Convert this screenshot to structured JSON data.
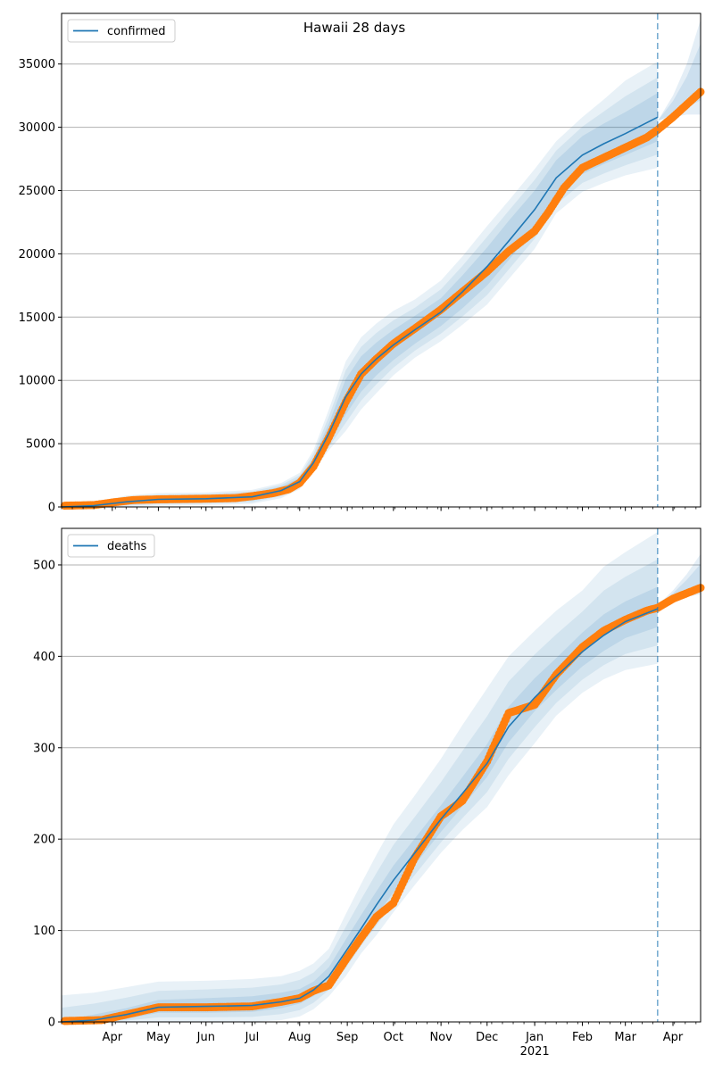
{
  "figure": {
    "title": "Hawaii 28 days",
    "forecast_start_date": "2021-03-22"
  },
  "colors": {
    "model_line": "#1f77b4",
    "observed": "#ff7f0e",
    "band": "#1f77b4",
    "grid": "#b0b0b0"
  },
  "x_axis": {
    "range": [
      "2020-02-28",
      "2021-04-19"
    ],
    "month_labels": [
      {
        "date": "2020-04-01",
        "label": "Apr"
      },
      {
        "date": "2020-05-01",
        "label": "May"
      },
      {
        "date": "2020-06-01",
        "label": "Jun"
      },
      {
        "date": "2020-07-01",
        "label": "Jul"
      },
      {
        "date": "2020-08-01",
        "label": "Aug"
      },
      {
        "date": "2020-09-01",
        "label": "Sep"
      },
      {
        "date": "2020-10-01",
        "label": "Oct"
      },
      {
        "date": "2020-11-01",
        "label": "Nov"
      },
      {
        "date": "2020-12-01",
        "label": "Dec"
      },
      {
        "date": "2021-01-01",
        "label": "Jan",
        "sublabel": "2021"
      },
      {
        "date": "2021-02-01",
        "label": "Feb"
      },
      {
        "date": "2021-03-01",
        "label": "Mar"
      },
      {
        "date": "2021-04-01",
        "label": "Apr"
      }
    ]
  },
  "chart_data": [
    {
      "type": "line",
      "legend": "confirmed",
      "legend_position": "upper left",
      "grid": "y",
      "ylim": [
        0,
        39000
      ],
      "yticks": [
        0,
        5000,
        10000,
        15000,
        20000,
        25000,
        30000,
        35000
      ],
      "model": {
        "x": [
          "2020-02-28",
          "2020-03-20",
          "2020-04-10",
          "2020-05-01",
          "2020-06-01",
          "2020-07-01",
          "2020-07-20",
          "2020-08-01",
          "2020-08-10",
          "2020-08-20",
          "2020-08-31",
          "2020-09-10",
          "2020-09-20",
          "2020-10-01",
          "2020-10-15",
          "2020-11-01",
          "2020-11-15",
          "2020-12-01",
          "2020-12-15",
          "2021-01-01",
          "2021-01-15",
          "2021-02-01",
          "2021-02-15",
          "2021-03-01",
          "2021-03-22"
        ],
        "y": [
          0,
          100,
          400,
          600,
          650,
          800,
          1300,
          2000,
          3500,
          5800,
          8700,
          10500,
          11700,
          12800,
          14000,
          15400,
          17000,
          19000,
          21000,
          23500,
          26000,
          27800,
          28700,
          29500,
          30800
        ]
      },
      "bands": {
        "lower_outer": [
          0,
          0,
          0,
          100,
          150,
          250,
          700,
          1400,
          2800,
          4500,
          6000,
          7700,
          9000,
          10400,
          11800,
          13100,
          14400,
          16000,
          18000,
          20400,
          23200,
          24900,
          25600,
          26200,
          26800
        ],
        "lower_inner": [
          0,
          50,
          200,
          350,
          400,
          500,
          1000,
          1700,
          3100,
          5000,
          7300,
          9100,
          10400,
          11600,
          12900,
          14300,
          15700,
          17500,
          19500,
          22000,
          24600,
          26300,
          27100,
          27800,
          28900
        ],
        "upper_inner": [
          0,
          150,
          600,
          850,
          900,
          1100,
          1600,
          2300,
          3900,
          6600,
          10100,
          11900,
          13000,
          14000,
          15100,
          16500,
          18300,
          20500,
          22600,
          25000,
          27400,
          29300,
          30300,
          31200,
          32700
        ],
        "upper_outer": [
          0,
          300,
          900,
          1100,
          1150,
          1350,
          1900,
          2700,
          4500,
          7700,
          11500,
          13400,
          14500,
          15500,
          16400,
          17900,
          19800,
          22200,
          24200,
          26700,
          28900,
          30800,
          32200,
          33700,
          35200
        ]
      },
      "observed": {
        "x": [
          "2020-03-01",
          "2020-03-20",
          "2020-04-01",
          "2020-04-15",
          "2020-05-01",
          "2020-06-01",
          "2020-06-20",
          "2020-07-01",
          "2020-07-15",
          "2020-07-25",
          "2020-08-01",
          "2020-08-10",
          "2020-08-20",
          "2020-08-31",
          "2020-09-10",
          "2020-09-20",
          "2020-10-01",
          "2020-10-15",
          "2020-11-01",
          "2020-11-15",
          "2020-12-01",
          "2020-12-15",
          "2021-01-01",
          "2021-01-10",
          "2021-01-20",
          "2021-02-01",
          "2021-02-15",
          "2021-03-01",
          "2021-03-15",
          "2021-03-22",
          "2021-04-01",
          "2021-04-19"
        ],
        "y": [
          100,
          150,
          350,
          550,
          600,
          650,
          700,
          850,
          1100,
          1400,
          1900,
          3200,
          5500,
          8300,
          10500,
          11700,
          12900,
          14100,
          15600,
          17000,
          18600,
          20200,
          21800,
          23300,
          25200,
          26800,
          27600,
          28400,
          29200,
          29800,
          30800,
          32800
        ]
      },
      "forecast": {
        "x": [
          "2021-03-22",
          "2021-04-01",
          "2021-04-10",
          "2021-04-19"
        ],
        "lower_outer": [
          30500,
          30800,
          31000,
          31000
        ],
        "upper_outer": [
          30500,
          32500,
          35000,
          38500
        ]
      }
    },
    {
      "type": "line",
      "legend": "deaths",
      "legend_position": "upper left",
      "grid": "y",
      "ylim": [
        0,
        540
      ],
      "yticks": [
        0,
        100,
        200,
        300,
        400,
        500
      ],
      "model": {
        "x": [
          "2020-02-28",
          "2020-03-20",
          "2020-04-10",
          "2020-05-01",
          "2020-06-01",
          "2020-07-01",
          "2020-07-20",
          "2020-08-01",
          "2020-08-10",
          "2020-08-20",
          "2020-08-31",
          "2020-09-10",
          "2020-09-20",
          "2020-10-01",
          "2020-10-15",
          "2020-11-01",
          "2020-11-15",
          "2020-12-01",
          "2020-12-15",
          "2021-01-01",
          "2021-01-15",
          "2021-02-01",
          "2021-02-15",
          "2021-03-01",
          "2021-03-22"
        ],
        "y": [
          0,
          2,
          8,
          16,
          17,
          18,
          22,
          26,
          35,
          50,
          77,
          102,
          128,
          155,
          185,
          222,
          250,
          283,
          323,
          355,
          378,
          405,
          423,
          438,
          452
        ]
      },
      "bands": {
        "lower_outer": [
          0,
          0,
          0,
          0,
          0,
          0,
          2,
          6,
          14,
          28,
          50,
          75,
          95,
          120,
          150,
          185,
          210,
          235,
          270,
          305,
          335,
          360,
          375,
          385,
          392
        ],
        "lower_inner": [
          0,
          0,
          3,
          10,
          10,
          11,
          15,
          20,
          28,
          42,
          68,
          92,
          116,
          142,
          172,
          208,
          236,
          268,
          306,
          340,
          363,
          389,
          406,
          420,
          432
        ],
        "upper_inner": [
          2,
          8,
          15,
          24,
          26,
          28,
          32,
          36,
          44,
          60,
          90,
          117,
          143,
          171,
          201,
          237,
          268,
          304,
          345,
          376,
          398,
          426,
          446,
          460,
          476
        ],
        "upper_outer": [
          29,
          32,
          38,
          44,
          45,
          47,
          50,
          56,
          64,
          80,
          118,
          151,
          183,
          216,
          248,
          288,
          325,
          365,
          400,
          428,
          450,
          472,
          498,
          514,
          536
        ]
      },
      "observed": {
        "x": [
          "2020-03-01",
          "2020-03-25",
          "2020-04-10",
          "2020-05-01",
          "2020-06-01",
          "2020-07-01",
          "2020-07-20",
          "2020-08-01",
          "2020-08-10",
          "2020-08-20",
          "2020-08-31",
          "2020-09-10",
          "2020-09-20",
          "2020-10-01",
          "2020-10-15",
          "2020-11-01",
          "2020-11-15",
          "2020-12-01",
          "2020-12-15",
          "2021-01-01",
          "2021-01-15",
          "2021-02-01",
          "2021-02-15",
          "2021-03-01",
          "2021-03-15",
          "2021-03-22",
          "2021-04-01",
          "2021-04-19"
        ],
        "y": [
          1,
          2,
          8,
          16,
          16,
          17,
          22,
          26,
          34,
          40,
          68,
          92,
          115,
          130,
          180,
          225,
          242,
          285,
          338,
          347,
          380,
          410,
          428,
          440,
          450,
          453,
          463,
          475
        ]
      },
      "forecast": {
        "x": [
          "2021-03-22",
          "2021-04-01",
          "2021-04-10",
          "2021-04-19"
        ],
        "lower_outer": [
          450,
          460,
          465,
          468
        ],
        "upper_outer": [
          456,
          472,
          490,
          512
        ]
      }
    }
  ]
}
